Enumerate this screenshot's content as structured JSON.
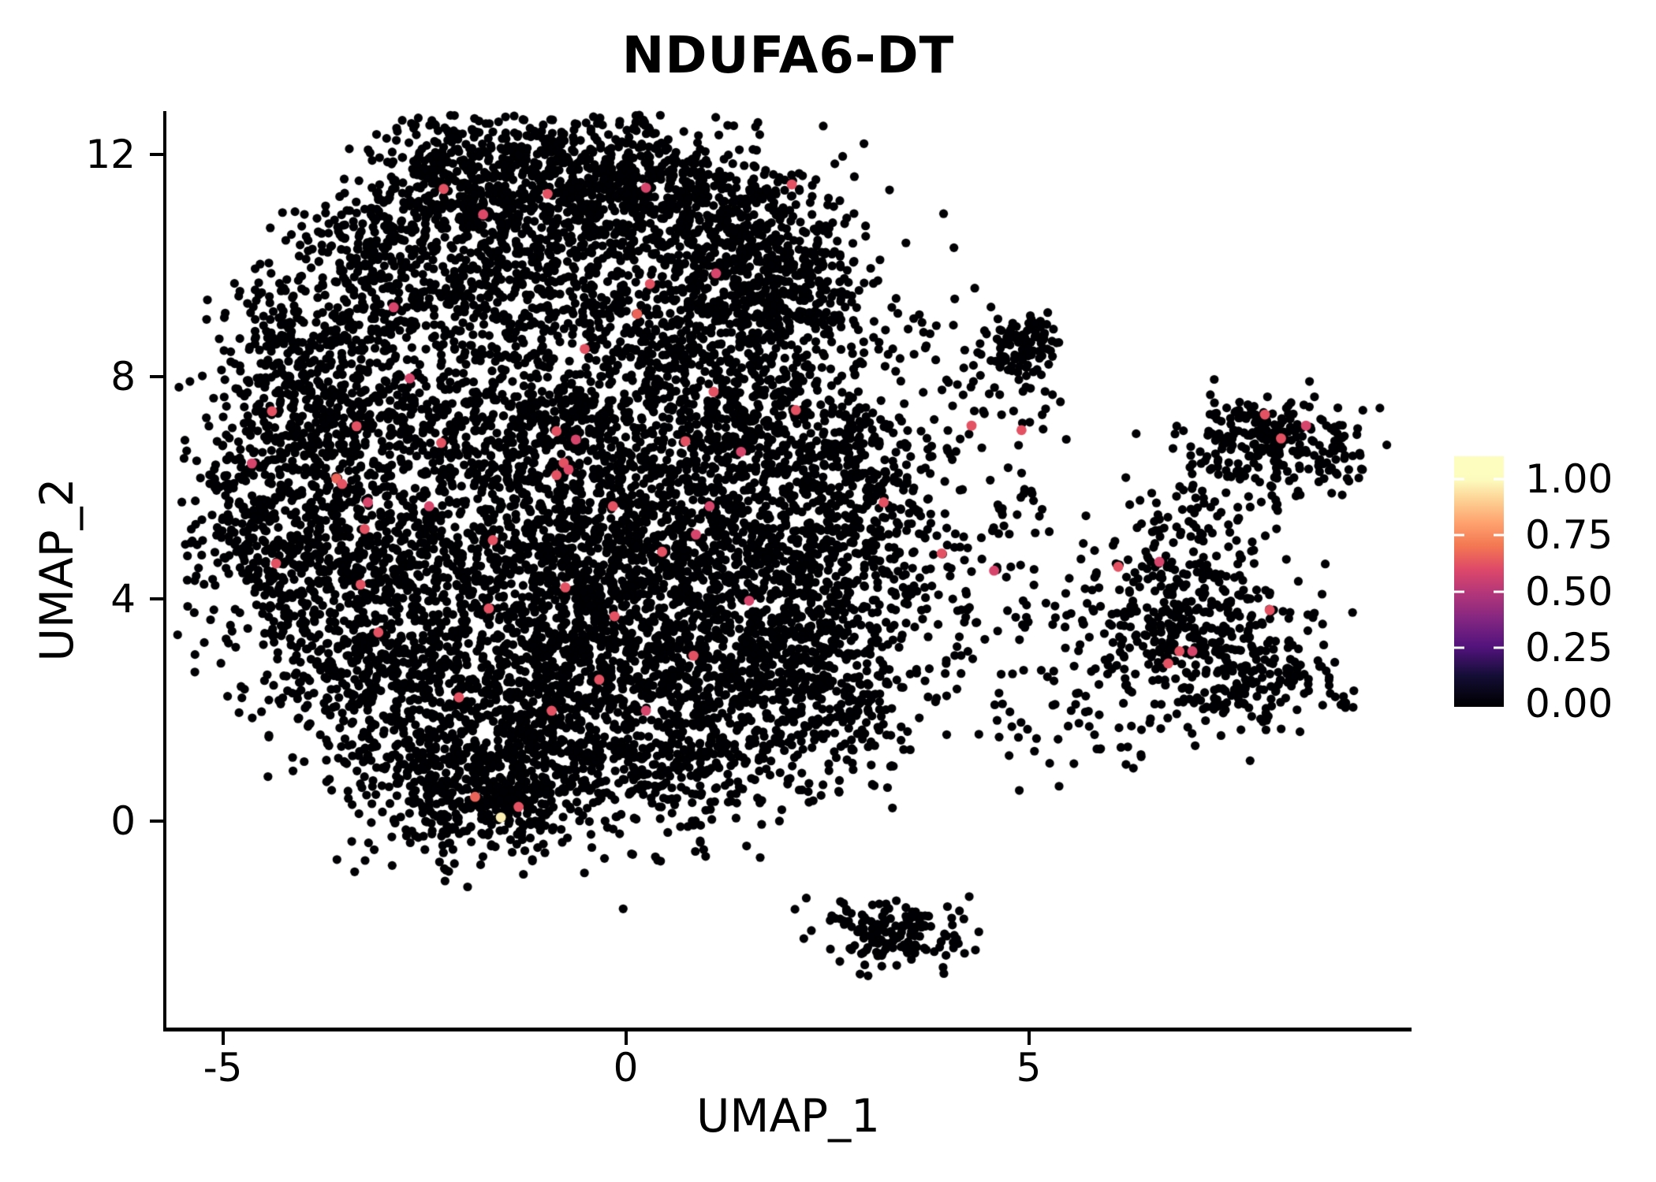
{
  "title": "NDUFA6-DT",
  "chart_data": {
    "type": "scatter",
    "title": "NDUFA6-DT",
    "xlabel": "UMAP_1",
    "ylabel": "UMAP_2",
    "xlim": [
      -5.7,
      9.73
    ],
    "ylim": [
      -3.74,
      12.78
    ],
    "grid": false,
    "x_ticks": [
      {
        "value": -5,
        "label": "-5"
      },
      {
        "value": 0,
        "label": "0"
      },
      {
        "value": 5,
        "label": "5"
      }
    ],
    "y_ticks": [
      {
        "value": 0,
        "label": "0"
      },
      {
        "value": 4,
        "label": "4"
      },
      {
        "value": 8,
        "label": "8"
      },
      {
        "value": 12,
        "label": "12"
      }
    ],
    "point_radius_px": 5.6,
    "zero_color": "#000004",
    "seed": 1337,
    "colormap": "magma",
    "colormap_stops": [
      [
        0.0,
        "#000004"
      ],
      [
        0.125,
        "#140E36"
      ],
      [
        0.25,
        "#51127C"
      ],
      [
        0.375,
        "#822681"
      ],
      [
        0.5,
        "#B73779"
      ],
      [
        0.6,
        "#DE4968"
      ],
      [
        0.7,
        "#F37651"
      ],
      [
        0.8,
        "#FE9F6D"
      ],
      [
        0.9,
        "#FDCD90"
      ],
      [
        1.0,
        "#FCFDBF"
      ]
    ],
    "legend": {
      "position": "right",
      "bar_range": [
        -0.014,
        1.103
      ],
      "ticks": [
        {
          "value": 1.0,
          "label": "1.00"
        },
        {
          "value": 0.75,
          "label": "0.75"
        },
        {
          "value": 0.5,
          "label": "0.50"
        },
        {
          "value": 0.25,
          "label": "0.25"
        },
        {
          "value": 0.0,
          "label": "0.00"
        }
      ]
    },
    "clusters_note": "Gaussian mixture approximation of ~11300 non-expressing cells: [center_x, center_y, sd_x, sd_y, n_points] in UMAP coords",
    "clusters": [
      [
        -1.8,
        11.52,
        0.59,
        0.64,
        450
      ],
      [
        -0.14,
        11.38,
        0.68,
        0.71,
        500
      ],
      [
        1.33,
        10.67,
        0.68,
        0.78,
        450
      ],
      [
        2.11,
        9.39,
        0.54,
        0.71,
        300
      ],
      [
        -3.07,
        10.1,
        0.59,
        0.78,
        350
      ],
      [
        -3.95,
        8.4,
        0.54,
        0.85,
        300
      ],
      [
        -1.31,
        9.82,
        0.78,
        0.85,
        350
      ],
      [
        0.55,
        8.82,
        0.78,
        0.99,
        400
      ],
      [
        -4.54,
        5.7,
        0.49,
        1.13,
        300
      ],
      [
        -3.37,
        6.55,
        0.68,
        1.13,
        400
      ],
      [
        -1.8,
        7.4,
        0.78,
        0.99,
        300
      ],
      [
        -0.33,
        6.84,
        0.78,
        0.99,
        400
      ],
      [
        1.53,
        7.12,
        0.78,
        0.99,
        400
      ],
      [
        2.8,
        5.99,
        0.59,
        0.99,
        350
      ],
      [
        -3.66,
        4.0,
        0.68,
        1.13,
        400
      ],
      [
        -2.09,
        4.85,
        0.78,
        1.13,
        400
      ],
      [
        -0.53,
        4.85,
        0.78,
        0.99,
        400
      ],
      [
        1.04,
        5.13,
        0.78,
        0.99,
        400
      ],
      [
        2.31,
        4.0,
        0.68,
        1.13,
        350
      ],
      [
        -2.88,
        2.3,
        0.68,
        0.99,
        350
      ],
      [
        -1.41,
        2.87,
        0.78,
        0.99,
        400
      ],
      [
        0.06,
        3.15,
        0.78,
        0.99,
        450
      ],
      [
        1.53,
        2.72,
        0.68,
        0.99,
        350
      ],
      [
        0.74,
        1.3,
        0.68,
        0.85,
        300
      ],
      [
        -0.92,
        1.3,
        0.78,
        0.85,
        350
      ],
      [
        -2.29,
        0.88,
        0.59,
        0.71,
        250
      ],
      [
        -1.51,
        0.31,
        0.49,
        0.43,
        150
      ],
      [
        2.6,
        2.01,
        0.49,
        0.85,
        200
      ],
      [
        3.97,
        4.85,
        0.59,
        1.13,
        60
      ],
      [
        4.95,
        3.43,
        0.68,
        1.13,
        70
      ],
      [
        5.73,
        2.3,
        0.59,
        0.85,
        60
      ],
      [
        4.56,
        7.97,
        0.39,
        0.85,
        25
      ],
      [
        3.78,
        8.82,
        0.49,
        0.71,
        25
      ],
      [
        4.95,
        8.57,
        0.25,
        0.28,
        95
      ],
      [
        4.8,
        6.98,
        0.34,
        0.99,
        25
      ],
      [
        7.89,
        6.84,
        0.47,
        0.47,
        230
      ],
      [
        7.2,
        5.63,
        0.49,
        0.57,
        60
      ],
      [
        8.86,
        6.62,
        0.25,
        0.35,
        30
      ],
      [
        7.1,
        3.43,
        0.68,
        0.78,
        330
      ],
      [
        6.42,
        4.07,
        0.44,
        0.64,
        80
      ],
      [
        7.69,
        2.44,
        0.44,
        0.43,
        80
      ],
      [
        8.38,
        2.65,
        0.25,
        0.26,
        25
      ],
      [
        8.91,
        2.3,
        0.15,
        0.14,
        8
      ],
      [
        3.39,
        -2.03,
        0.44,
        0.31,
        125
      ],
      [
        2.72,
        -1.74,
        0.29,
        0.17,
        25
      ]
    ],
    "expressing_cells_note": "[umap_1, umap_2, expression_value] for colored (NDUFA6-DT expressing) cells",
    "expressing_cells": [
      [
        -0.97,
        11.29,
        0.62
      ],
      [
        0.25,
        11.4,
        0.58
      ],
      [
        2.06,
        11.46,
        0.62
      ],
      [
        -1.77,
        10.92,
        0.6
      ],
      [
        0.3,
        9.67,
        0.62
      ],
      [
        0.14,
        9.13,
        0.66
      ],
      [
        -0.51,
        8.5,
        0.62
      ],
      [
        -3.34,
        7.11,
        0.62
      ],
      [
        -3.59,
        6.17,
        0.66
      ],
      [
        -3.52,
        6.07,
        0.62
      ],
      [
        -3.2,
        5.74,
        0.58
      ],
      [
        -3.24,
        5.26,
        0.62
      ],
      [
        -3.29,
        4.26,
        0.62
      ],
      [
        -2.07,
        2.23,
        0.62
      ],
      [
        -0.86,
        7.02,
        0.62
      ],
      [
        -0.62,
        6.87,
        0.58
      ],
      [
        -0.77,
        6.45,
        0.62
      ],
      [
        -0.71,
        6.33,
        0.6
      ],
      [
        -0.86,
        6.23,
        0.62
      ],
      [
        -0.16,
        5.67,
        0.62
      ],
      [
        -1.65,
        5.06,
        0.62
      ],
      [
        0.87,
        5.16,
        0.58
      ],
      [
        -0.75,
        4.21,
        0.62
      ],
      [
        -0.14,
        3.69,
        0.62
      ],
      [
        -1.87,
        0.44,
        0.66
      ],
      [
        -1.33,
        0.26,
        0.62
      ],
      [
        -1.55,
        0.07,
        0.97
      ],
      [
        4.29,
        7.12,
        0.62
      ],
      [
        4.91,
        7.04,
        0.62
      ],
      [
        7.93,
        7.32,
        0.62
      ],
      [
        8.44,
        7.12,
        0.58
      ],
      [
        8.13,
        6.89,
        0.62
      ],
      [
        3.2,
        5.74,
        0.62
      ],
      [
        3.92,
        4.82,
        0.62
      ],
      [
        4.57,
        4.51,
        0.58
      ],
      [
        6.11,
        4.58,
        0.62
      ],
      [
        6.62,
        4.67,
        0.58
      ],
      [
        7.99,
        3.8,
        0.62
      ],
      [
        6.87,
        3.06,
        0.62
      ],
      [
        7.03,
        3.06,
        0.58
      ],
      [
        6.73,
        2.84,
        0.62
      ],
      [
        -4.39,
        7.38,
        0.62
      ],
      [
        -4.64,
        6.44,
        0.58
      ],
      [
        -4.34,
        4.64,
        0.62
      ],
      [
        -2.68,
        7.97,
        0.58
      ],
      [
        1.09,
        7.73,
        0.62
      ],
      [
        1.43,
        6.65,
        0.58
      ],
      [
        2.11,
        7.4,
        0.62
      ],
      [
        0.74,
        6.84,
        0.62
      ],
      [
        1.04,
        5.67,
        0.58
      ],
      [
        0.45,
        4.85,
        0.62
      ],
      [
        -0.33,
        2.55,
        0.62
      ],
      [
        0.25,
        1.99,
        0.58
      ],
      [
        0.84,
        2.98,
        0.62
      ],
      [
        1.53,
        3.97,
        0.58
      ],
      [
        -0.92,
        1.99,
        0.62
      ],
      [
        -1.7,
        3.83,
        0.62
      ],
      [
        -2.44,
        5.67,
        0.58
      ],
      [
        -3.07,
        3.4,
        0.62
      ],
      [
        -2.29,
        6.81,
        0.62
      ],
      [
        1.12,
        9.86,
        0.58
      ],
      [
        -2.26,
        11.38,
        0.62
      ],
      [
        -2.88,
        9.25,
        0.58
      ]
    ]
  }
}
